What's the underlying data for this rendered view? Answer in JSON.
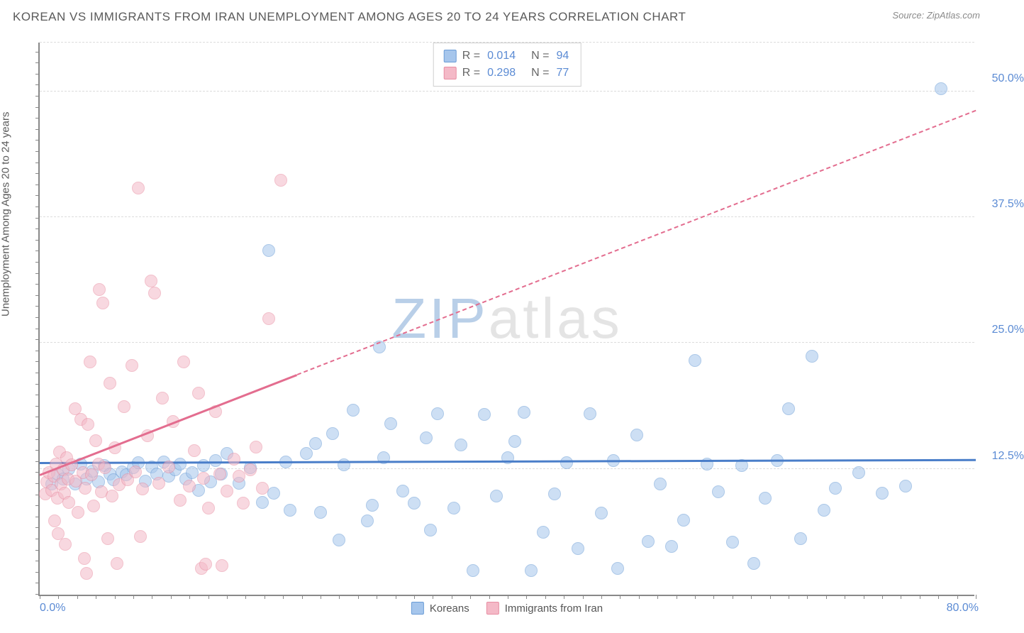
{
  "title": "KOREAN VS IMMIGRANTS FROM IRAN UNEMPLOYMENT AMONG AGES 20 TO 24 YEARS CORRELATION CHART",
  "source_label": "Source:",
  "source_value": "ZipAtlas.com",
  "ylabel": "Unemployment Among Ages 20 to 24 years",
  "watermark_bold": "ZIP",
  "watermark_rest": "atlas",
  "chart": {
    "type": "scatter",
    "xlim": [
      0,
      80
    ],
    "ylim": [
      0,
      55
    ],
    "ytick_values": [
      12.5,
      25.0,
      37.5,
      50.0
    ],
    "ytick_labels": [
      "12.5%",
      "25.0%",
      "37.5%",
      "50.0%"
    ],
    "xtick_left": "0.0%",
    "xtick_right": "80.0%",
    "background_color": "#ffffff",
    "grid_color": "#dcdcdc",
    "marker_radius": 9,
    "marker_opacity": 0.55,
    "x_minor_tick_step": 1.6,
    "y_minor_tick_step": 1.1
  },
  "series": [
    {
      "name": "Koreans",
      "color_fill": "#a6c6ec",
      "color_stroke": "#6a9cd6",
      "r_label": "R =",
      "r_value": "0.014",
      "n_label": "N =",
      "n_value": "94",
      "trend": {
        "x0": 0,
        "y0": 13.0,
        "x1": 80,
        "y1": 13.3,
        "solid_until_x": 80,
        "color": "#4a7ec9"
      },
      "points": [
        [
          1,
          11
        ],
        [
          1.5,
          12
        ],
        [
          2,
          11.5
        ],
        [
          2.5,
          12.5
        ],
        [
          3,
          11
        ],
        [
          3.5,
          13
        ],
        [
          4,
          11.5
        ],
        [
          4.5,
          12.3
        ],
        [
          5,
          11.2
        ],
        [
          5.5,
          12.8
        ],
        [
          6,
          12
        ],
        [
          6.3,
          11.4
        ],
        [
          7,
          12.2
        ],
        [
          7.4,
          11.9
        ],
        [
          8,
          12.6
        ],
        [
          8.4,
          13.1
        ],
        [
          9,
          11.3
        ],
        [
          9.6,
          12.7
        ],
        [
          10,
          12
        ],
        [
          10.6,
          13.2
        ],
        [
          11,
          11.8
        ],
        [
          11.6,
          12.4
        ],
        [
          12,
          13
        ],
        [
          12.5,
          11.5
        ],
        [
          13,
          12.1
        ],
        [
          13.6,
          10.4
        ],
        [
          14,
          12.8
        ],
        [
          14.6,
          11.2
        ],
        [
          15,
          13.3
        ],
        [
          15.5,
          12
        ],
        [
          16,
          14
        ],
        [
          17,
          11.1
        ],
        [
          18,
          12.6
        ],
        [
          19,
          9.2
        ],
        [
          19.6,
          34.2
        ],
        [
          20,
          10.1
        ],
        [
          21,
          13.2
        ],
        [
          21.4,
          8.4
        ],
        [
          22.8,
          14
        ],
        [
          23.6,
          15
        ],
        [
          24,
          8.2
        ],
        [
          25,
          16
        ],
        [
          25.6,
          5.4
        ],
        [
          26,
          12.9
        ],
        [
          26.8,
          18.3
        ],
        [
          28,
          7.3
        ],
        [
          28.4,
          8.9
        ],
        [
          29,
          24.6
        ],
        [
          29.4,
          13.6
        ],
        [
          30,
          17
        ],
        [
          31,
          10.3
        ],
        [
          32,
          9.1
        ],
        [
          33,
          15.6
        ],
        [
          33.4,
          6.4
        ],
        [
          34,
          18.0
        ],
        [
          35.4,
          8.6
        ],
        [
          36,
          14.9
        ],
        [
          37,
          2.4
        ],
        [
          38,
          17.9
        ],
        [
          39,
          9.8
        ],
        [
          40,
          13.6
        ],
        [
          42,
          2.4
        ],
        [
          40.6,
          15.2
        ],
        [
          41.4,
          18.1
        ],
        [
          43,
          6.2
        ],
        [
          44,
          10
        ],
        [
          45,
          13.1
        ],
        [
          46,
          4.6
        ],
        [
          47,
          18
        ],
        [
          48,
          8.1
        ],
        [
          49,
          13.3
        ],
        [
          49.4,
          2.6
        ],
        [
          51,
          15.9
        ],
        [
          52,
          5.3
        ],
        [
          53,
          11
        ],
        [
          55,
          7.4
        ],
        [
          56,
          23.3
        ],
        [
          57,
          13
        ],
        [
          58,
          10.2
        ],
        [
          59.2,
          5.2
        ],
        [
          60,
          12.8
        ],
        [
          62,
          9.6
        ],
        [
          64,
          18.5
        ],
        [
          63,
          13.3
        ],
        [
          65,
          5.6
        ],
        [
          66,
          23.7
        ],
        [
          68,
          10.6
        ],
        [
          70,
          12.1
        ],
        [
          72,
          10.1
        ],
        [
          77,
          50.3
        ],
        [
          74,
          10.8
        ],
        [
          67,
          8.4
        ],
        [
          61,
          3.1
        ],
        [
          54,
          4.8
        ]
      ]
    },
    {
      "name": "Immigrants from Iran",
      "color_fill": "#f4b9c7",
      "color_stroke": "#e88da2",
      "r_label": "R =",
      "r_value": "0.298",
      "n_label": "N =",
      "n_value": "77",
      "trend": {
        "x0": 0,
        "y0": 11.8,
        "x1": 80,
        "y1": 48.0,
        "solid_until_x": 22,
        "color": "#e36d8f"
      },
      "points": [
        [
          0.5,
          10
        ],
        [
          0.6,
          11.2
        ],
        [
          0.8,
          12.1
        ],
        [
          1,
          10.4
        ],
        [
          1.2,
          11.8
        ],
        [
          1.4,
          13
        ],
        [
          1.5,
          9.6
        ],
        [
          1.7,
          14.2
        ],
        [
          1.8,
          11
        ],
        [
          2.0,
          12.4
        ],
        [
          2.1,
          10.1
        ],
        [
          2.3,
          13.6
        ],
        [
          2.4,
          11.5
        ],
        [
          2.5,
          9.2
        ],
        [
          2.7,
          12.9
        ],
        [
          3.0,
          18.5
        ],
        [
          3.1,
          11.3
        ],
        [
          3.3,
          8.2
        ],
        [
          3.5,
          17.4
        ],
        [
          3.7,
          12.1
        ],
        [
          3.9,
          10.6
        ],
        [
          4.1,
          16.9
        ],
        [
          4.3,
          23.1
        ],
        [
          4.4,
          11.9
        ],
        [
          4.6,
          8.8
        ],
        [
          4.8,
          15.3
        ],
        [
          5.0,
          13
        ],
        [
          5.1,
          30.3
        ],
        [
          5.3,
          10.2
        ],
        [
          5.4,
          29
        ],
        [
          5.6,
          12.6
        ],
        [
          6.0,
          21
        ],
        [
          6.2,
          9.8
        ],
        [
          6.4,
          14.6
        ],
        [
          6.8,
          10.9
        ],
        [
          7.2,
          18.7
        ],
        [
          7.5,
          11.4
        ],
        [
          7.9,
          22.8
        ],
        [
          8.2,
          12.2
        ],
        [
          8.4,
          40.4
        ],
        [
          8.8,
          10.5
        ],
        [
          9.2,
          15.8
        ],
        [
          9.5,
          31.2
        ],
        [
          9.8,
          30.0
        ],
        [
          10.2,
          11.1
        ],
        [
          10.5,
          19.5
        ],
        [
          11,
          12.7
        ],
        [
          11.4,
          17.2
        ],
        [
          12,
          9.4
        ],
        [
          12.3,
          23.1
        ],
        [
          12.8,
          10.8
        ],
        [
          13.2,
          14.3
        ],
        [
          13.6,
          20
        ],
        [
          14,
          11.6
        ],
        [
          14.4,
          8.6
        ],
        [
          15,
          18.2
        ],
        [
          15.4,
          12
        ],
        [
          15.6,
          2.9
        ],
        [
          16,
          10.3
        ],
        [
          16.6,
          13.5
        ],
        [
          17,
          11.8
        ],
        [
          17.4,
          9.1
        ],
        [
          18,
          12.4
        ],
        [
          18.5,
          14.7
        ],
        [
          19,
          10.6
        ],
        [
          19.6,
          27.4
        ],
        [
          20.6,
          41.2
        ],
        [
          5.8,
          5.6
        ],
        [
          3.8,
          3.6
        ],
        [
          2.2,
          5.0
        ],
        [
          6.6,
          3.1
        ],
        [
          4.0,
          2.1
        ],
        [
          13.8,
          2.6
        ],
        [
          14.2,
          3.0
        ],
        [
          1.3,
          7.3
        ],
        [
          1.6,
          6.1
        ],
        [
          8.6,
          5.8
        ]
      ]
    }
  ],
  "legend_series": [
    {
      "label": "Koreans",
      "fill": "#a6c6ec",
      "stroke": "#6a9cd6"
    },
    {
      "label": "Immigrants from Iran",
      "fill": "#f4b9c7",
      "stroke": "#e88da2"
    }
  ]
}
